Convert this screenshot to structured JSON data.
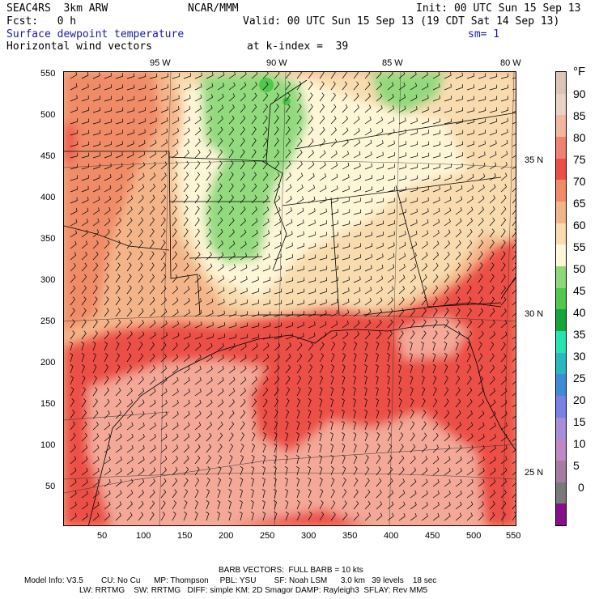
{
  "header": {
    "model": "SEAC4RS  3km ARW",
    "org": "NCAR/MMM",
    "init": "Init: 00 UTC Sun 15 Sep 13",
    "fcst": "Fcst:   0 h",
    "valid": "Valid: 00 UTC Sun 15 Sep 13 (19 CDT Sat 14 Sep 13)",
    "field": "Surface dewpoint temperature",
    "smooth": "sm= 1",
    "vectors": "Horizontal wind vectors",
    "kindex": "at k-index =  39"
  },
  "axes": {
    "x_ticks": [
      "50",
      "100",
      "150",
      "200",
      "250",
      "300",
      "350",
      "400",
      "450",
      "500",
      "550"
    ],
    "y_ticks": [
      "550",
      "500",
      "450",
      "400",
      "350",
      "300",
      "250",
      "200",
      "150",
      "100",
      "50"
    ],
    "lon_labels": [
      "95 W",
      "90 W",
      "85 W",
      "80 W"
    ],
    "lat_labels": [
      "35 N",
      "30 N",
      "25 N"
    ]
  },
  "colorbar": {
    "unit": "°F",
    "labels": [
      "90",
      "85",
      "80",
      "75",
      "70",
      "65",
      "60",
      "55",
      "50",
      "45",
      "40",
      "35",
      "30",
      "25",
      "20",
      "15",
      "10",
      "5",
      "0"
    ],
    "colors": [
      "#dcc4b8",
      "#e8d2c6",
      "#f3b7a0",
      "#ef8272",
      "#ec4f47",
      "#f08b68",
      "#f4b48a",
      "#f8dcb0",
      "#fff6d8",
      "#8ed87a",
      "#50c850",
      "#16a53a",
      "#26e4b0",
      "#28b8c0",
      "#3e8cd8",
      "#7a80e6",
      "#a68ed8",
      "#bf88c6",
      "#a67ca4",
      "#7a7a7a",
      "#84108a"
    ]
  },
  "footer": {
    "barb": "BARB VECTORS:  FULL BARB = 10 kts",
    "line1": "Model Info: V3.5        CU: No Cu      MP: Thompson     PBL: YSU        SF: Noah LSM      3.0 km   39 levels    18 sec",
    "line2": "LW: RRTMG    SW: RRTMG   DIFF: simple KM: 2D Smagor DAMP: Rayleigh3  SFLAY: Rev MM5"
  }
}
